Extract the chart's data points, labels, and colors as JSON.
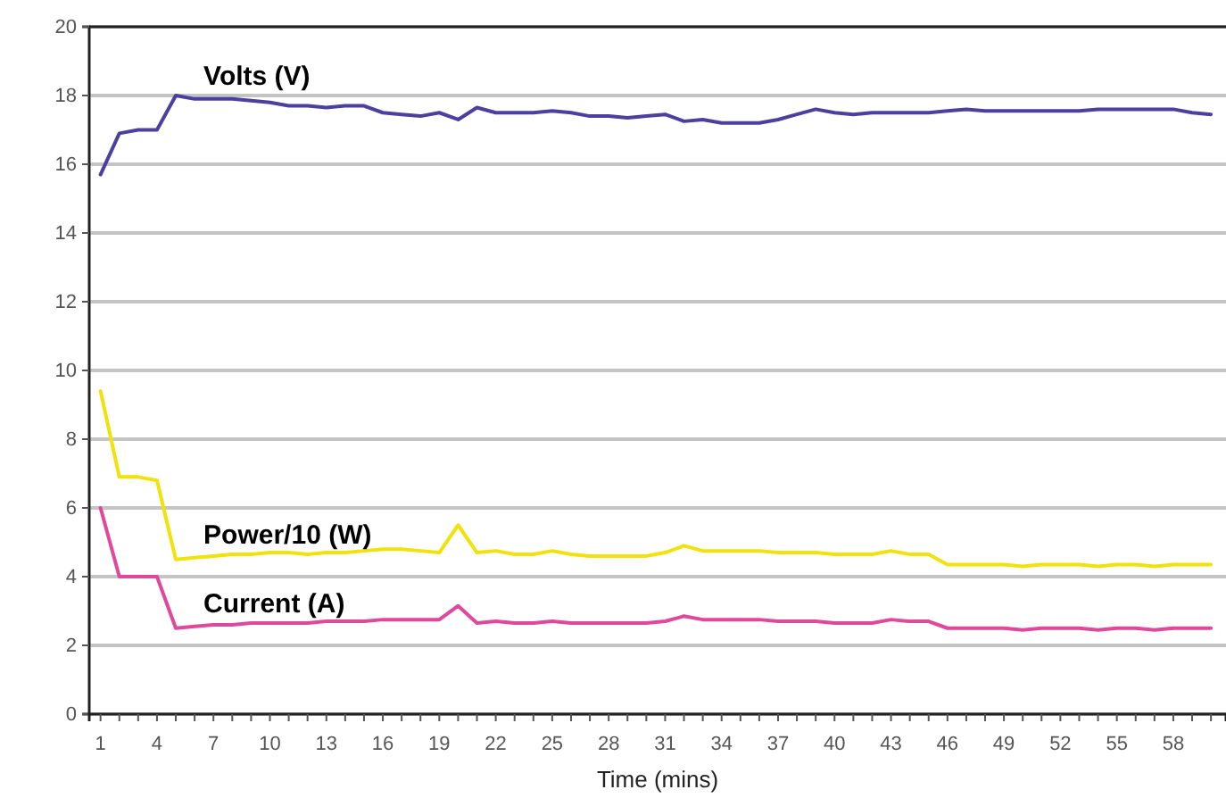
{
  "chart_data": {
    "type": "line",
    "xlabel": "Time (mins)",
    "x": [
      1,
      2,
      3,
      4,
      5,
      6,
      7,
      8,
      9,
      10,
      11,
      12,
      13,
      14,
      15,
      16,
      17,
      18,
      19,
      20,
      21,
      22,
      23,
      24,
      25,
      26,
      27,
      28,
      29,
      30,
      31,
      32,
      33,
      34,
      35,
      36,
      37,
      38,
      39,
      40,
      41,
      42,
      43,
      44,
      45,
      46,
      47,
      48,
      49,
      50,
      51,
      52,
      53,
      54,
      55,
      56,
      57,
      58,
      59,
      60
    ],
    "series": [
      {
        "name": "Volts (V)",
        "color": "#4b3fa0",
        "values": [
          15.7,
          16.9,
          17.0,
          17.0,
          18.0,
          17.9,
          17.9,
          17.9,
          17.85,
          17.8,
          17.7,
          17.7,
          17.65,
          17.7,
          17.7,
          17.5,
          17.45,
          17.4,
          17.5,
          17.3,
          17.65,
          17.5,
          17.5,
          17.5,
          17.55,
          17.5,
          17.4,
          17.4,
          17.35,
          17.4,
          17.45,
          17.25,
          17.3,
          17.2,
          17.2,
          17.2,
          17.3,
          17.45,
          17.6,
          17.5,
          17.45,
          17.5,
          17.5,
          17.5,
          17.5,
          17.55,
          17.6,
          17.55,
          17.55,
          17.55,
          17.55,
          17.55,
          17.55,
          17.6,
          17.6,
          17.6,
          17.6,
          17.6,
          17.5,
          17.45
        ]
      },
      {
        "name": "Power/10 (W)",
        "color": "#f2e20c",
        "values": [
          9.4,
          6.9,
          6.9,
          6.8,
          4.5,
          4.55,
          4.6,
          4.65,
          4.65,
          4.7,
          4.7,
          4.65,
          4.7,
          4.7,
          4.75,
          4.8,
          4.8,
          4.75,
          4.7,
          5.5,
          4.7,
          4.75,
          4.65,
          4.65,
          4.75,
          4.65,
          4.6,
          4.6,
          4.6,
          4.6,
          4.7,
          4.9,
          4.75,
          4.75,
          4.75,
          4.75,
          4.7,
          4.7,
          4.7,
          4.65,
          4.65,
          4.65,
          4.75,
          4.65,
          4.65,
          4.35,
          4.35,
          4.35,
          4.35,
          4.3,
          4.35,
          4.35,
          4.35,
          4.3,
          4.35,
          4.35,
          4.3,
          4.35,
          4.35,
          4.35
        ]
      },
      {
        "name": "Current (A)",
        "color": "#e0489b",
        "values": [
          6.0,
          4.0,
          4.0,
          4.0,
          2.5,
          2.55,
          2.6,
          2.6,
          2.65,
          2.65,
          2.65,
          2.65,
          2.7,
          2.7,
          2.7,
          2.75,
          2.75,
          2.75,
          2.75,
          3.15,
          2.65,
          2.7,
          2.65,
          2.65,
          2.7,
          2.65,
          2.65,
          2.65,
          2.65,
          2.65,
          2.7,
          2.85,
          2.75,
          2.75,
          2.75,
          2.75,
          2.7,
          2.7,
          2.7,
          2.65,
          2.65,
          2.65,
          2.75,
          2.7,
          2.7,
          2.5,
          2.5,
          2.5,
          2.5,
          2.45,
          2.5,
          2.5,
          2.5,
          2.45,
          2.5,
          2.5,
          2.45,
          2.5,
          2.5,
          2.5
        ]
      }
    ],
    "xlim": [
      0.4,
      60.8
    ],
    "xticks": [
      1,
      {
        "value": 2,
        "label": null
      },
      {
        "value": 3,
        "label": null
      },
      4,
      {
        "value": 5,
        "label": null
      },
      {
        "value": 6,
        "label": null
      },
      7,
      {
        "value": 8,
        "label": null
      },
      {
        "value": 9,
        "label": null
      },
      10,
      {
        "value": 11,
        "label": null
      },
      {
        "value": 12,
        "label": null
      },
      13,
      {
        "value": 14,
        "label": null
      },
      {
        "value": 15,
        "label": null
      },
      16,
      {
        "value": 17,
        "label": null
      },
      {
        "value": 18,
        "label": null
      },
      19,
      {
        "value": 20,
        "label": null
      },
      {
        "value": 21,
        "label": null
      },
      22,
      {
        "value": 23,
        "label": null
      },
      {
        "value": 24,
        "label": null
      },
      25,
      {
        "value": 26,
        "label": null
      },
      {
        "value": 27,
        "label": null
      },
      28,
      {
        "value": 29,
        "label": null
      },
      {
        "value": 30,
        "label": null
      },
      31,
      {
        "value": 32,
        "label": null
      },
      {
        "value": 33,
        "label": null
      },
      34,
      {
        "value": 35,
        "label": null
      },
      {
        "value": 36,
        "label": null
      },
      37,
      {
        "value": 38,
        "label": null
      },
      {
        "value": 39,
        "label": null
      },
      40,
      {
        "value": 41,
        "label": null
      },
      {
        "value": 42,
        "label": null
      },
      43,
      {
        "value": 44,
        "label": null
      },
      {
        "value": 45,
        "label": null
      },
      46,
      {
        "value": 47,
        "label": null
      },
      {
        "value": 48,
        "label": null
      },
      49,
      {
        "value": 50,
        "label": null
      },
      {
        "value": 51,
        "label": null
      },
      52,
      {
        "value": 53,
        "label": null
      },
      {
        "value": 54,
        "label": null
      },
      55,
      {
        "value": 56,
        "label": null
      },
      {
        "value": 57,
        "label": null
      },
      58,
      {
        "value": 59,
        "label": null
      },
      {
        "value": 60,
        "label": null
      }
    ],
    "ylim": [
      0,
      20
    ],
    "yticks": [
      0,
      2,
      4,
      6,
      8,
      10,
      12,
      14,
      16,
      18,
      20
    ],
    "grid": "y",
    "legend": false,
    "marker": "none",
    "line_style": "solid"
  }
}
